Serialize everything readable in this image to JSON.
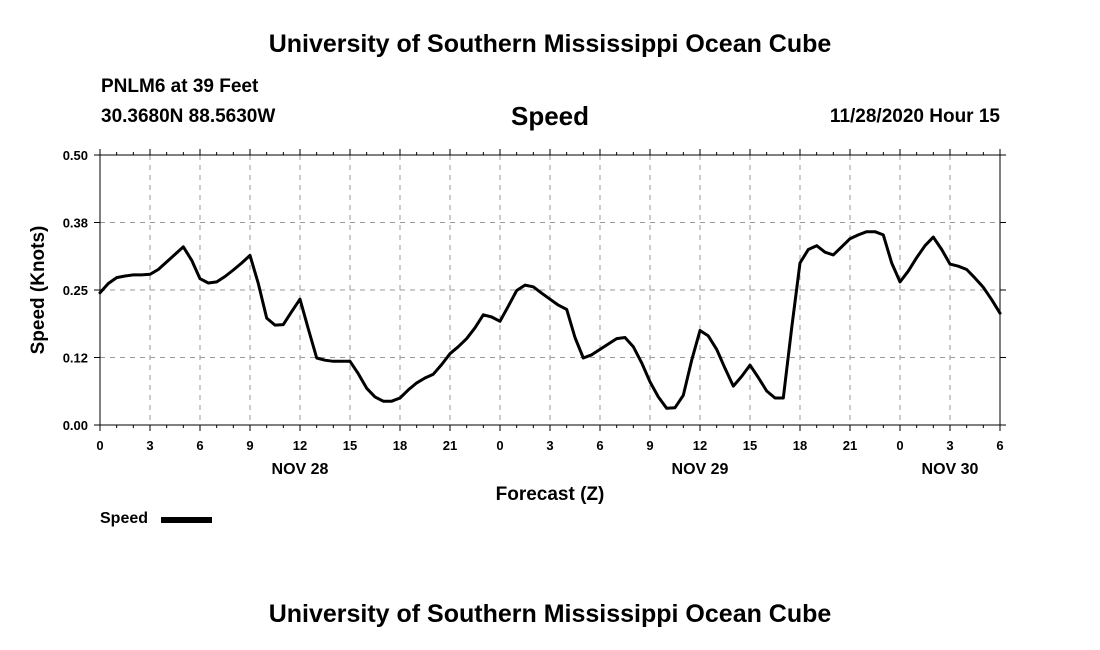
{
  "header": {
    "top_title": "University of Southern Mississippi Ocean Cube",
    "station": "PNLM6 at 39 Feet",
    "coords": "30.3680N 88.5630W",
    "datetime": "11/28/2020 Hour 15",
    "bottom_title": "University of Southern Mississippi Ocean Cube"
  },
  "legend": {
    "label": "Speed"
  },
  "colors": {
    "line": "#000000",
    "grid": "#999999",
    "axis": "#000000"
  },
  "chart_data": {
    "type": "line",
    "title": "Speed",
    "xlabel": "Forecast (Z)",
    "ylabel": "Speed (Knots)",
    "ylim": [
      0,
      0.5
    ],
    "yticks": [
      "0.00",
      "0.12",
      "0.25",
      "0.38",
      "0.50"
    ],
    "xlim_hours": [
      0,
      54
    ],
    "xticks": [
      "0",
      "3",
      "6",
      "9",
      "12",
      "15",
      "18",
      "21",
      "0",
      "3",
      "6",
      "9",
      "12",
      "15",
      "18",
      "21",
      "0",
      "3",
      "6"
    ],
    "date_labels": [
      {
        "label": "NOV 28",
        "hour": 12
      },
      {
        "label": "NOV 29",
        "hour": 36
      },
      {
        "label": "NOV 30",
        "hour": 51
      }
    ],
    "grid": true,
    "legend_position": "bottom-left",
    "series": [
      {
        "name": "Speed",
        "x": [
          0,
          0.5,
          1,
          1.5,
          2,
          2.5,
          3,
          3.5,
          4,
          4.5,
          5,
          5.5,
          6,
          6.5,
          7,
          7.5,
          8,
          8.5,
          9,
          9.5,
          10,
          10.5,
          11,
          11.5,
          12,
          12.5,
          13,
          13.5,
          14,
          14.5,
          15,
          15.5,
          16,
          16.5,
          17,
          17.5,
          18,
          18.5,
          19,
          19.5,
          20,
          20.5,
          21,
          21.5,
          22,
          22.5,
          23,
          23.5,
          24,
          24.5,
          25,
          25.5,
          26,
          26.5,
          27,
          27.5,
          28,
          28.5,
          29,
          29.5,
          30,
          30.5,
          31,
          31.5,
          32,
          32.5,
          33,
          33.5,
          34,
          34.5,
          35,
          35.5,
          36,
          36.5,
          37,
          37.5,
          38,
          38.5,
          39,
          39.5,
          40,
          40.5,
          41,
          41.5,
          42,
          42.5,
          43,
          43.5,
          44,
          44.5,
          45,
          45.5,
          46,
          46.5,
          47,
          47.5,
          48,
          48.5,
          49,
          49.5,
          50,
          50.5,
          51,
          51.5,
          52,
          52.5,
          53,
          53.5,
          54
        ],
        "y": [
          0.245,
          0.262,
          0.273,
          0.276,
          0.278,
          0.278,
          0.279,
          0.288,
          0.302,
          0.316,
          0.33,
          0.305,
          0.271,
          0.263,
          0.265,
          0.275,
          0.287,
          0.3,
          0.314,
          0.262,
          0.198,
          0.185,
          0.186,
          0.21,
          0.233,
          0.178,
          0.124,
          0.12,
          0.118,
          0.118,
          0.118,
          0.095,
          0.068,
          0.052,
          0.044,
          0.044,
          0.05,
          0.065,
          0.078,
          0.087,
          0.094,
          0.112,
          0.132,
          0.145,
          0.16,
          0.18,
          0.204,
          0.2,
          0.192,
          0.22,
          0.249,
          0.259,
          0.256,
          0.244,
          0.233,
          0.222,
          0.214,
          0.162,
          0.124,
          0.13,
          0.14,
          0.15,
          0.16,
          0.162,
          0.145,
          0.115,
          0.08,
          0.052,
          0.031,
          0.032,
          0.055,
          0.12,
          0.175,
          0.165,
          0.14,
          0.105,
          0.072,
          0.09,
          0.111,
          0.088,
          0.063,
          0.05,
          0.05,
          0.18,
          0.3,
          0.325,
          0.332,
          0.32,
          0.315,
          0.33,
          0.345,
          0.352,
          0.358,
          0.358,
          0.352,
          0.3,
          0.265,
          0.285,
          0.31,
          0.332,
          0.348,
          0.325,
          0.298,
          0.294,
          0.288,
          0.272,
          0.255,
          0.232,
          0.207
        ]
      }
    ]
  }
}
